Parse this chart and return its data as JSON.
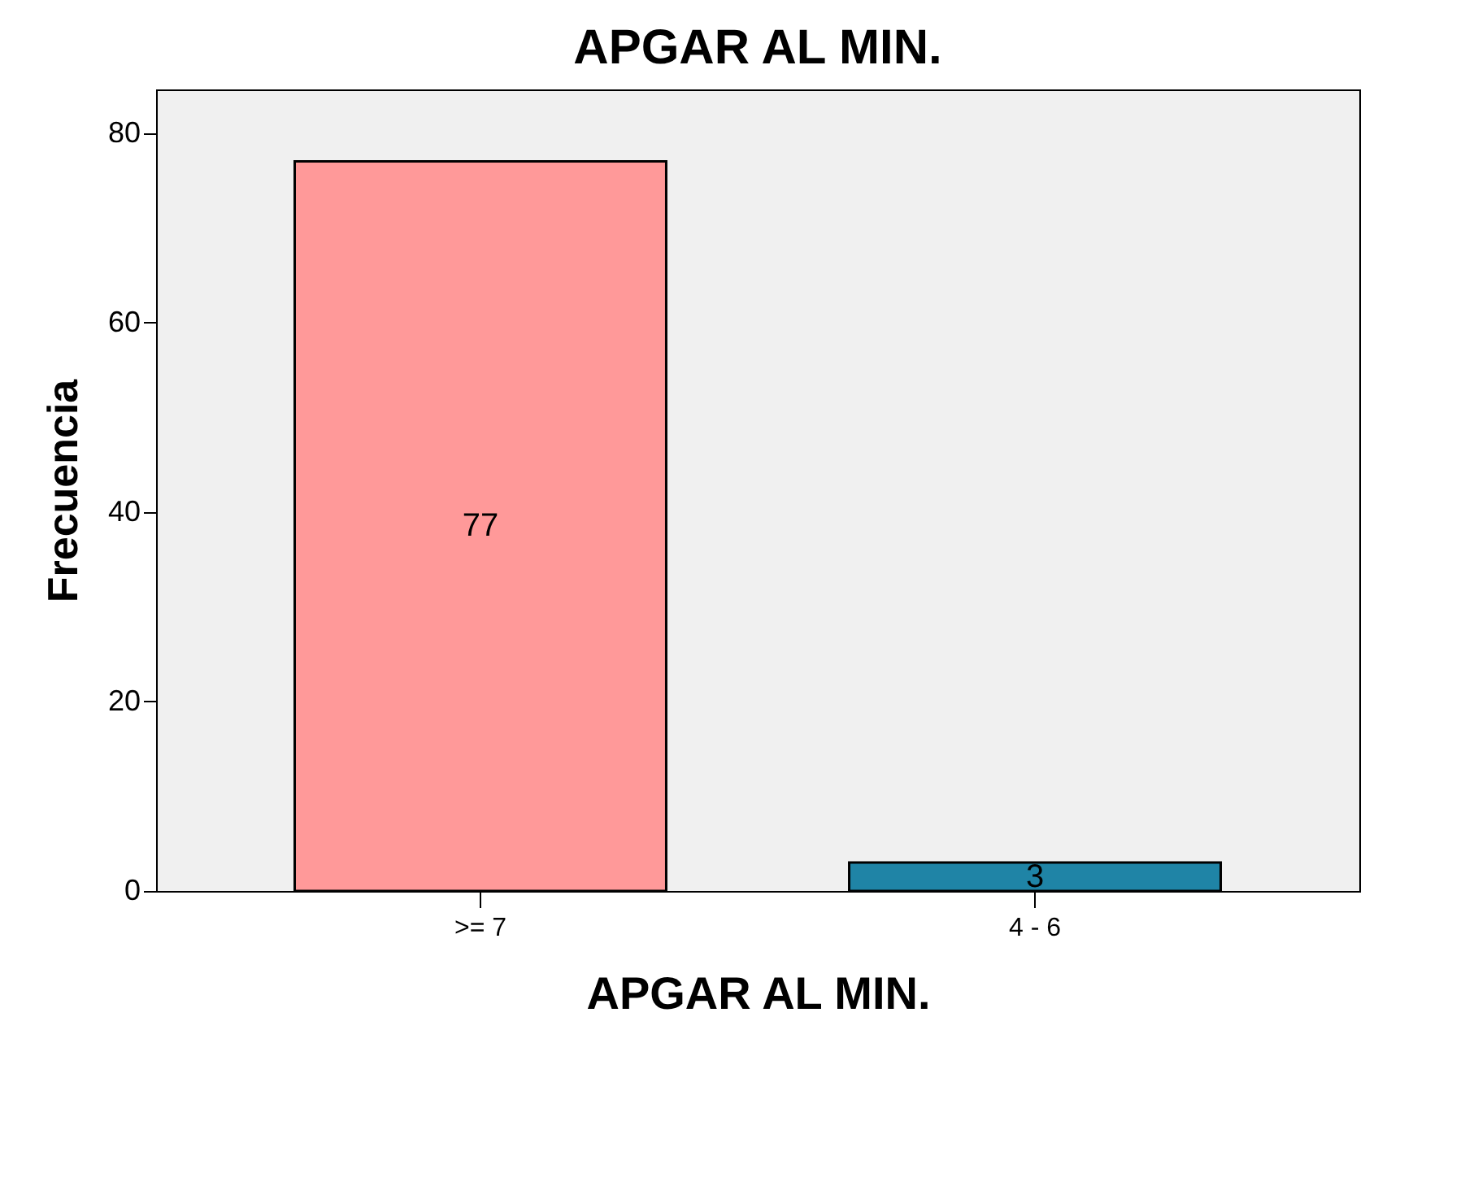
{
  "chart_data": {
    "type": "bar",
    "title": "APGAR AL MIN.",
    "xlabel": "APGAR AL MIN.",
    "ylabel": "Frecuencia",
    "categories": [
      ">= 7",
      "4 - 6"
    ],
    "values": [
      77,
      3
    ],
    "colors": [
      "#ff9999",
      "#1f84a6"
    ],
    "ylim": [
      0,
      84.6
    ],
    "yticks": [
      0,
      20,
      40,
      60,
      80
    ],
    "grid": false,
    "data_labels": true
  }
}
